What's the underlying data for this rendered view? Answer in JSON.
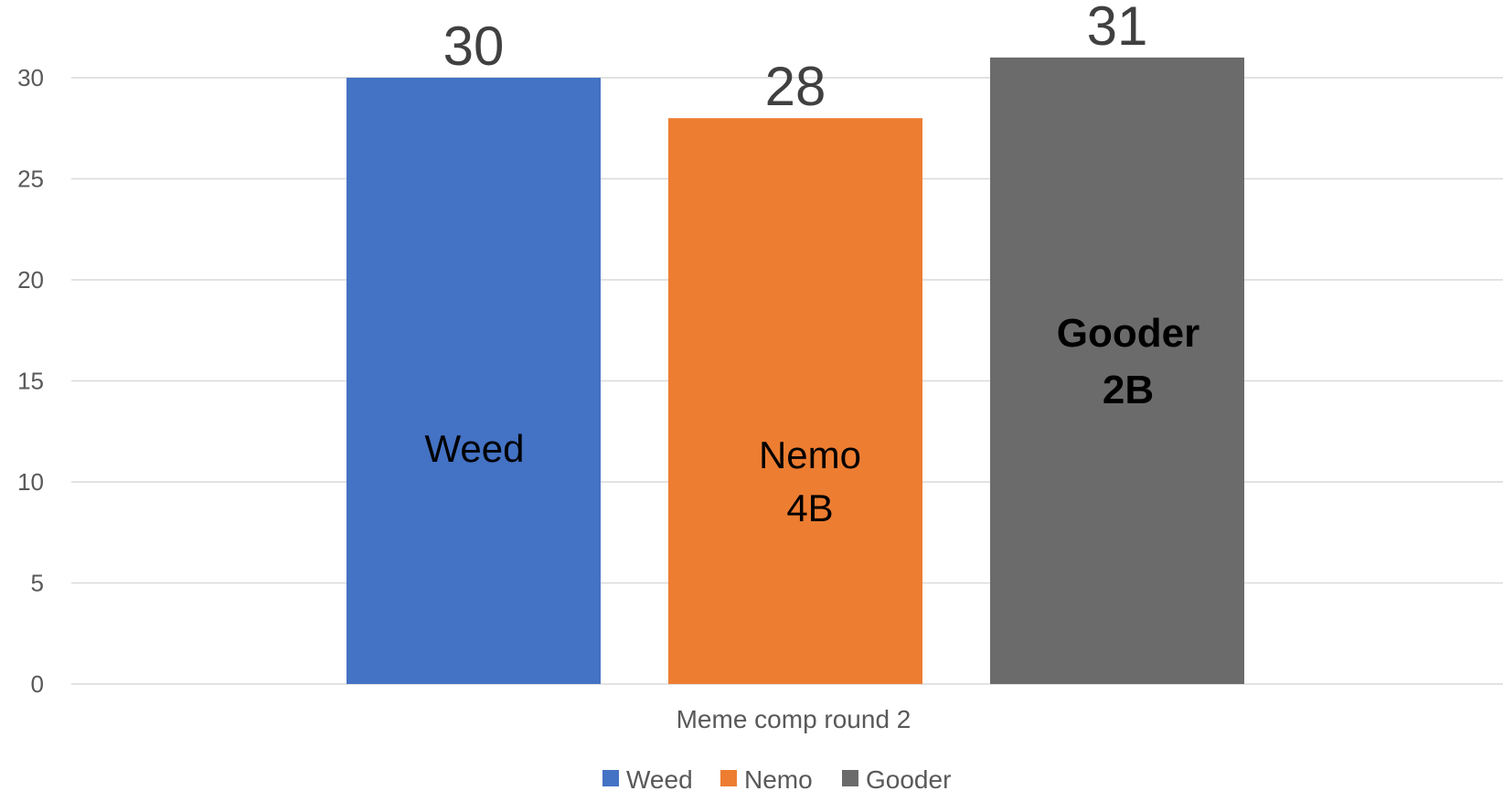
{
  "chart_data": {
    "type": "bar",
    "title": "",
    "xlabel": "",
    "ylabel": "",
    "category_label": "Meme comp round 2",
    "ylim": [
      0,
      30
    ],
    "yticks": [
      0,
      5,
      10,
      15,
      20,
      25,
      30
    ],
    "grid": true,
    "legend_position": "bottom",
    "series": [
      {
        "name": "Weed",
        "values": [
          30
        ],
        "color": "#4472C4",
        "data_label": "30",
        "inbar_lines": [
          "Weed"
        ],
        "inbar_style": "normal"
      },
      {
        "name": "Nemo",
        "values": [
          28
        ],
        "color": "#ED7D31",
        "data_label": "28",
        "inbar_lines": [
          "Nemo",
          "4B"
        ],
        "inbar_style": "normal"
      },
      {
        "name": "Gooder",
        "values": [
          31
        ],
        "color": "#6B6B6B",
        "data_label": "31",
        "inbar_lines": [
          "Gooder",
          "2B"
        ],
        "inbar_style": "bold"
      }
    ]
  }
}
